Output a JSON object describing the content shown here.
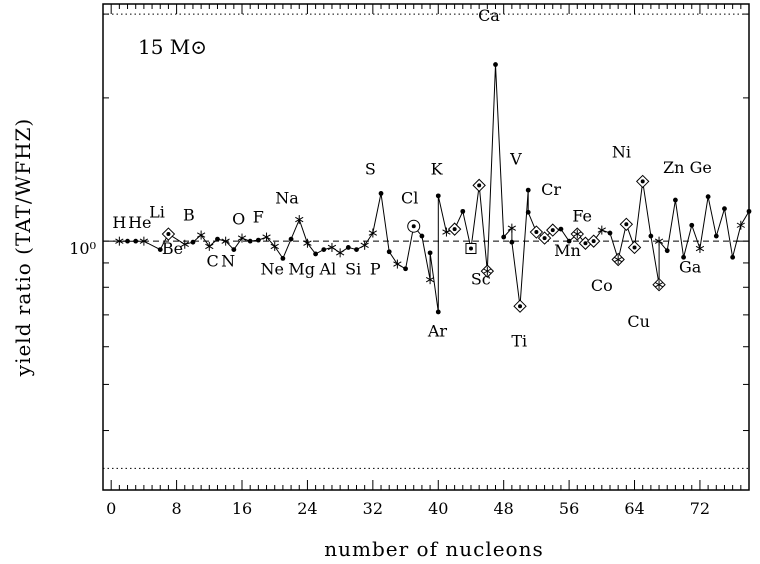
{
  "chart_data": {
    "type": "scatter",
    "title": "",
    "annotation": "15 M⊙",
    "xlabel": "number of nucleons",
    "ylabel": "yield ratio (TAT/WFHZ)",
    "xlim": [
      -1,
      78
    ],
    "y_axis_scale": "log",
    "ylim": [
      0.3,
      3.15
    ],
    "y_tick_label": "10⁰",
    "x_ticks": [
      0,
      8,
      16,
      24,
      32,
      40,
      48,
      56,
      64,
      72
    ],
    "reference_lines": [
      {
        "y": 1.0,
        "style": "dashed"
      },
      {
        "y": 3.0,
        "style": "dotted"
      },
      {
        "y": 0.333,
        "style": "dotted"
      }
    ],
    "grid": false,
    "series": [
      {
        "style": "line-with-markers",
        "points": [
          {
            "x": 1,
            "y": 1.0,
            "m": "star"
          },
          {
            "x": 2,
            "y": 1.0,
            "m": "dot"
          },
          {
            "x": 3,
            "y": 1.0,
            "m": "dot"
          },
          {
            "x": 4,
            "y": 1.0,
            "m": "star"
          },
          {
            "x": 6,
            "y": 0.96,
            "m": "dot"
          },
          {
            "x": 7,
            "y": 1.035,
            "m": "diamond"
          },
          {
            "x": 9,
            "y": 0.985,
            "m": "star"
          },
          {
            "x": 10,
            "y": 0.995,
            "m": "dot"
          },
          {
            "x": 11,
            "y": 1.03,
            "m": "star"
          },
          {
            "x": 12,
            "y": 0.975,
            "m": "star"
          },
          {
            "x": 13,
            "y": 1.01,
            "m": "dot"
          },
          {
            "x": 14,
            "y": 1.0,
            "m": "star"
          },
          {
            "x": 15,
            "y": 0.96,
            "m": "dot"
          },
          {
            "x": 16,
            "y": 1.015,
            "m": "star"
          },
          {
            "x": 17,
            "y": 1.0,
            "m": "dot"
          },
          {
            "x": 18,
            "y": 1.005,
            "m": "dot"
          },
          {
            "x": 19,
            "y": 1.02,
            "m": "star"
          },
          {
            "x": 20,
            "y": 0.975,
            "m": "star"
          },
          {
            "x": 21,
            "y": 0.92,
            "m": "dot"
          },
          {
            "x": 22,
            "y": 1.01,
            "m": "dot"
          },
          {
            "x": 23,
            "y": 1.11,
            "m": "star"
          },
          {
            "x": 24,
            "y": 0.99,
            "m": "star"
          },
          {
            "x": 25,
            "y": 0.94,
            "m": "dot"
          },
          {
            "x": 26,
            "y": 0.96,
            "m": "dot"
          },
          {
            "x": 27,
            "y": 0.97,
            "m": "star"
          },
          {
            "x": 28,
            "y": 0.945,
            "m": "star"
          },
          {
            "x": 29,
            "y": 0.97,
            "m": "dot"
          },
          {
            "x": 30,
            "y": 0.96,
            "m": "dot"
          },
          {
            "x": 31,
            "y": 0.98,
            "m": "star"
          },
          {
            "x": 32,
            "y": 1.04,
            "m": "star"
          },
          {
            "x": 33,
            "y": 1.26,
            "m": "dot"
          },
          {
            "x": 34,
            "y": 0.95,
            "m": "dot"
          },
          {
            "x": 35,
            "y": 0.895,
            "m": "star"
          },
          {
            "x": 36,
            "y": 0.875,
            "m": "dot"
          },
          {
            "x": 37,
            "y": 1.075,
            "m": "circle"
          },
          {
            "x": 38,
            "y": 1.025,
            "m": "dot"
          },
          {
            "x": 39,
            "y": 0.83,
            "m": "star"
          },
          {
            "x": 39,
            "y": 0.945,
            "m": "dot"
          },
          {
            "x": 40,
            "y": 0.71,
            "m": "dot"
          },
          {
            "x": 40,
            "y": 1.245,
            "m": "dot"
          },
          {
            "x": 41,
            "y": 1.045,
            "m": "star"
          },
          {
            "x": 42,
            "y": 1.06,
            "m": "diamond"
          },
          {
            "x": 43,
            "y": 1.155,
            "m": "dot"
          },
          {
            "x": 44,
            "y": 0.965,
            "m": "square"
          },
          {
            "x": 45,
            "y": 1.31,
            "m": "diamond"
          },
          {
            "x": 46,
            "y": 0.865,
            "m": "diamond-x"
          },
          {
            "x": 47,
            "y": 2.35,
            "m": "dot"
          },
          {
            "x": 48,
            "y": 1.02,
            "m": "dot"
          },
          {
            "x": 49,
            "y": 1.065,
            "m": "star"
          },
          {
            "x": 49,
            "y": 0.995,
            "m": "dot"
          },
          {
            "x": 50,
            "y": 0.73,
            "m": "diamond"
          },
          {
            "x": 51,
            "y": 1.28,
            "m": "dot"
          },
          {
            "x": 51,
            "y": 1.15,
            "m": "dot"
          },
          {
            "x": 52,
            "y": 1.045,
            "m": "diamond"
          },
          {
            "x": 53,
            "y": 1.015,
            "m": "diamond"
          },
          {
            "x": 54,
            "y": 1.055,
            "m": "diamond"
          },
          {
            "x": 55,
            "y": 1.06,
            "m": "dot"
          },
          {
            "x": 56,
            "y": 1.0,
            "m": "dot"
          },
          {
            "x": 57,
            "y": 1.035,
            "m": "diamond-x"
          },
          {
            "x": 58,
            "y": 0.99,
            "m": "diamond"
          },
          {
            "x": 59,
            "y": 1.0,
            "m": "diamond"
          },
          {
            "x": 60,
            "y": 1.055,
            "m": "star"
          },
          {
            "x": 61,
            "y": 1.04,
            "m": "dot"
          },
          {
            "x": 62,
            "y": 0.915,
            "m": "diamond-x"
          },
          {
            "x": 63,
            "y": 1.085,
            "m": "diamond"
          },
          {
            "x": 64,
            "y": 0.97,
            "m": "diamond"
          },
          {
            "x": 65,
            "y": 1.335,
            "m": "diamond"
          },
          {
            "x": 66,
            "y": 1.025,
            "m": "dot"
          },
          {
            "x": 67,
            "y": 0.81,
            "m": "diamond-x"
          },
          {
            "x": 67,
            "y": 1.0,
            "m": "star"
          },
          {
            "x": 68,
            "y": 0.955,
            "m": "dot"
          },
          {
            "x": 69,
            "y": 1.22,
            "m": "dot"
          },
          {
            "x": 70,
            "y": 0.925,
            "m": "dot"
          },
          {
            "x": 71,
            "y": 1.08,
            "m": "dot"
          },
          {
            "x": 72,
            "y": 0.965,
            "m": "star"
          },
          {
            "x": 73,
            "y": 1.24,
            "m": "dot"
          },
          {
            "x": 74,
            "y": 1.025,
            "m": "dot"
          },
          {
            "x": 75,
            "y": 1.17,
            "m": "dot"
          },
          {
            "x": 76,
            "y": 0.925,
            "m": "dot"
          },
          {
            "x": 77,
            "y": 1.08,
            "m": "star"
          },
          {
            "x": 78,
            "y": 1.155,
            "m": "dot"
          }
        ]
      }
    ],
    "element_labels": [
      {
        "text": "H",
        "x": 1.0,
        "y": 1.065
      },
      {
        "text": "He",
        "x": 3.5,
        "y": 1.065
      },
      {
        "text": "Li",
        "x": 5.6,
        "y": 1.12
      },
      {
        "text": "Be",
        "x": 7.5,
        "y": 0.94
      },
      {
        "text": "B",
        "x": 9.5,
        "y": 1.105
      },
      {
        "text": "C",
        "x": 12.4,
        "y": 0.885
      },
      {
        "text": "N",
        "x": 14.3,
        "y": 0.885
      },
      {
        "text": "O",
        "x": 15.6,
        "y": 1.085
      },
      {
        "text": "F",
        "x": 18.0,
        "y": 1.095
      },
      {
        "text": "Na",
        "x": 21.5,
        "y": 1.2
      },
      {
        "text": "Ne",
        "x": 19.7,
        "y": 0.85
      },
      {
        "text": "Mg",
        "x": 23.3,
        "y": 0.85
      },
      {
        "text": "Al",
        "x": 26.5,
        "y": 0.85
      },
      {
        "text": "Si",
        "x": 29.6,
        "y": 0.85
      },
      {
        "text": "P",
        "x": 32.3,
        "y": 0.85
      },
      {
        "text": "S",
        "x": 31.7,
        "y": 1.38
      },
      {
        "text": "Cl",
        "x": 36.5,
        "y": 1.2
      },
      {
        "text": "K",
        "x": 39.8,
        "y": 1.38
      },
      {
        "text": "Ar",
        "x": 39.9,
        "y": 0.63
      },
      {
        "text": "Sc",
        "x": 45.2,
        "y": 0.81
      },
      {
        "text": "Ca",
        "x": 46.2,
        "y": 2.9
      },
      {
        "text": "V",
        "x": 49.5,
        "y": 1.45
      },
      {
        "text": "Ti",
        "x": 49.9,
        "y": 0.6
      },
      {
        "text": "Cr",
        "x": 53.8,
        "y": 1.25
      },
      {
        "text": "Fe",
        "x": 57.6,
        "y": 1.1
      },
      {
        "text": "Mn",
        "x": 55.8,
        "y": 0.93
      },
      {
        "text": "Co",
        "x": 60.0,
        "y": 0.785
      },
      {
        "text": "Ni",
        "x": 62.4,
        "y": 1.5
      },
      {
        "text": "Cu",
        "x": 64.5,
        "y": 0.66
      },
      {
        "text": "Zn",
        "x": 68.8,
        "y": 1.39
      },
      {
        "text": "Ge",
        "x": 72.1,
        "y": 1.39
      },
      {
        "text": "Ga",
        "x": 70.8,
        "y": 0.86
      }
    ]
  }
}
